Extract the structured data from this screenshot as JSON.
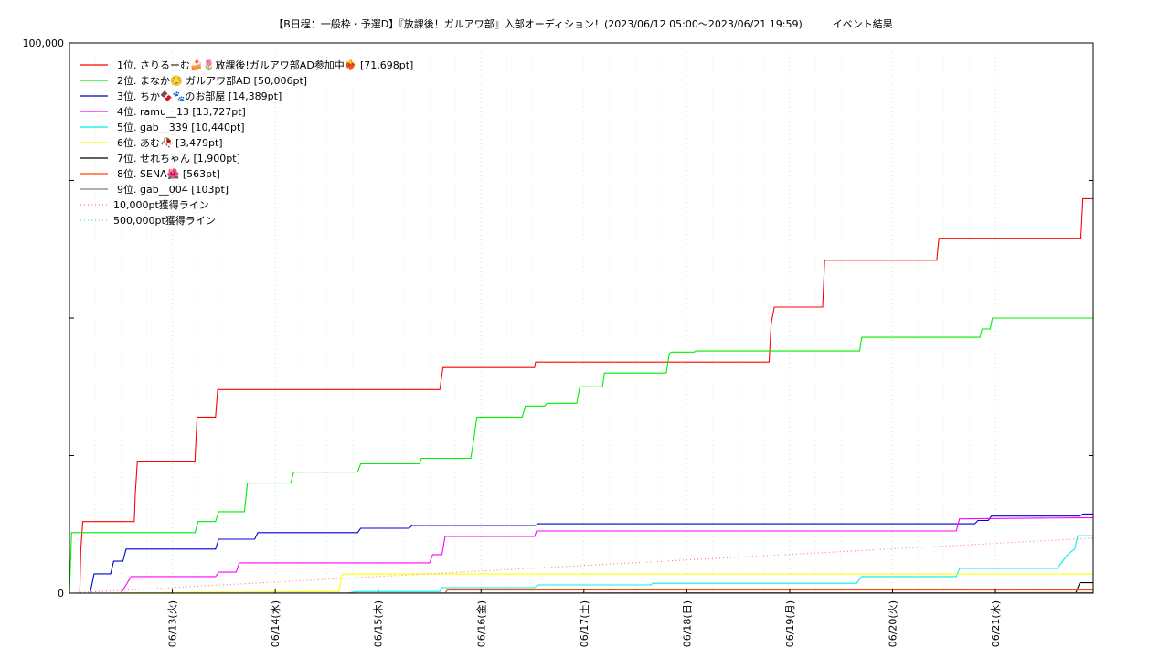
{
  "chart_data": {
    "type": "line",
    "title": "【B日程：一般枠・予選D】『放課後！ガルアワ部』入部オーディション！(2023/06/12 05:00〜2023/06/21 19:59)　　　イベント結果",
    "y_top_label": "100,000",
    "y_bottom_label": "0",
    "ylim": [
      0,
      100000
    ],
    "xlim": [
      "2023-06-12 05:00",
      "2023-06-21 19:59"
    ],
    "x_ticks": [
      "06/13(火)",
      "06/14(水)",
      "06/15(木)",
      "06/16(金)",
      "06/17(土)",
      "06/18(日)",
      "06/19(月)",
      "06/20(火)",
      "06/21(水)"
    ],
    "x_tick_times": [
      1,
      2,
      3,
      4,
      5,
      6,
      7,
      8,
      9
    ],
    "grid": true,
    "legend_position": "top-left",
    "series": [
      {
        "name": "1位. さりるーむ🍰🌷放課後!ガルアワ部AD参加中❤️‍🔥 [71,698pt]",
        "color": "#ff0000",
        "dash": "",
        "points": [
          [
            0.1,
            0
          ],
          [
            0.11,
            8000
          ],
          [
            0.13,
            13000
          ],
          [
            0.63,
            13000
          ],
          [
            0.64,
            18000
          ],
          [
            0.66,
            24000
          ],
          [
            1.22,
            24000
          ],
          [
            1.24,
            32000
          ],
          [
            1.42,
            32000
          ],
          [
            1.44,
            37000
          ],
          [
            3.6,
            37000
          ],
          [
            3.63,
            41000
          ],
          [
            4.52,
            41000
          ],
          [
            4.53,
            42000
          ],
          [
            6.8,
            42000
          ],
          [
            6.82,
            49000
          ],
          [
            6.85,
            52000
          ],
          [
            7.32,
            52000
          ],
          [
            7.34,
            60500
          ],
          [
            8.43,
            60500
          ],
          [
            8.45,
            64500
          ],
          [
            9.83,
            64500
          ],
          [
            9.85,
            71698
          ],
          [
            9.95,
            71698
          ]
        ]
      },
      {
        "name": "2位. まなか☺️ ガルアワ部AD [50,006pt]",
        "color": "#00ee00",
        "dash": "",
        "points": [
          [
            0,
            0
          ],
          [
            0.02,
            11000
          ],
          [
            1.22,
            11000
          ],
          [
            1.25,
            13000
          ],
          [
            1.42,
            13000
          ],
          [
            1.45,
            14800
          ],
          [
            1.7,
            14800
          ],
          [
            1.73,
            20000
          ],
          [
            2.15,
            20000
          ],
          [
            2.18,
            22000
          ],
          [
            2.8,
            22000
          ],
          [
            2.83,
            23500
          ],
          [
            3.4,
            23500
          ],
          [
            3.42,
            24500
          ],
          [
            3.9,
            24500
          ],
          [
            3.93,
            28000
          ],
          [
            3.96,
            32000
          ],
          [
            4.4,
            32000
          ],
          [
            4.43,
            34000
          ],
          [
            4.62,
            34000
          ],
          [
            4.64,
            34500
          ],
          [
            4.93,
            34500
          ],
          [
            4.96,
            37500
          ],
          [
            5.18,
            37500
          ],
          [
            5.2,
            40000
          ],
          [
            5.8,
            40000
          ],
          [
            5.83,
            43500
          ],
          [
            5.85,
            43800
          ],
          [
            6.07,
            43800
          ],
          [
            6.09,
            44000
          ],
          [
            7.68,
            44000
          ],
          [
            7.7,
            46500
          ],
          [
            8.85,
            46500
          ],
          [
            8.87,
            48000
          ],
          [
            8.95,
            48000
          ],
          [
            8.97,
            50006
          ],
          [
            9.95,
            50006
          ]
        ]
      },
      {
        "name": "3位. ちか🍫🐾のお部屋 [14,389pt]",
        "color": "#0000cc",
        "dash": "",
        "points": [
          [
            0.2,
            0
          ],
          [
            0.24,
            3500
          ],
          [
            0.4,
            3500
          ],
          [
            0.43,
            5800
          ],
          [
            0.52,
            5800
          ],
          [
            0.55,
            8000
          ],
          [
            1.42,
            8000
          ],
          [
            1.45,
            9800
          ],
          [
            1.8,
            9800
          ],
          [
            1.83,
            11000
          ],
          [
            2.8,
            11000
          ],
          [
            2.83,
            11800
          ],
          [
            3.3,
            11800
          ],
          [
            3.33,
            12300
          ],
          [
            4.53,
            12300
          ],
          [
            4.55,
            12600
          ],
          [
            8.8,
            12600
          ],
          [
            8.83,
            13200
          ],
          [
            8.93,
            13200
          ],
          [
            8.96,
            14000
          ],
          [
            9.82,
            14000
          ],
          [
            9.85,
            14389
          ],
          [
            9.95,
            14389
          ]
        ]
      },
      {
        "name": "4位. ramu__13 [13,727pt]",
        "color": "#ff00ff",
        "dash": "",
        "points": [
          [
            0.5,
            0
          ],
          [
            0.6,
            3000
          ],
          [
            1.42,
            3000
          ],
          [
            1.45,
            3800
          ],
          [
            1.62,
            3800
          ],
          [
            1.65,
            5500
          ],
          [
            3.5,
            5500
          ],
          [
            3.53,
            7000
          ],
          [
            3.62,
            7000
          ],
          [
            3.65,
            10300
          ],
          [
            4.52,
            10300
          ],
          [
            4.54,
            11300
          ],
          [
            8.62,
            11300
          ],
          [
            8.65,
            13500
          ],
          [
            9.95,
            13727
          ]
        ]
      },
      {
        "name": "5位. gab__339 [10,440pt]",
        "color": "#00eeee",
        "dash": "",
        "points": [
          [
            2.7,
            0
          ],
          [
            2.8,
            300
          ],
          [
            3.6,
            300
          ],
          [
            3.62,
            1000
          ],
          [
            4.52,
            1000
          ],
          [
            4.55,
            1500
          ],
          [
            5.65,
            1500
          ],
          [
            5.67,
            1800
          ],
          [
            7.65,
            1800
          ],
          [
            7.7,
            3000
          ],
          [
            8.62,
            3000
          ],
          [
            8.65,
            4500
          ],
          [
            9.6,
            4500
          ],
          [
            9.7,
            7000
          ],
          [
            9.77,
            8000
          ],
          [
            9.8,
            10440
          ],
          [
            9.95,
            10440
          ]
        ]
      },
      {
        "name": "6位. あむ🥀 [3,479pt]",
        "color": "#ffff00",
        "dash": "",
        "points": [
          [
            0.25,
            0
          ],
          [
            2.62,
            300
          ],
          [
            2.65,
            3479
          ],
          [
            9.95,
            3479
          ]
        ]
      },
      {
        "name": "7位. せれちゃん [1,900pt]",
        "color": "#000000",
        "dash": "",
        "points": [
          [
            0.3,
            0
          ],
          [
            9.78,
            0
          ],
          [
            9.82,
            1900
          ],
          [
            9.95,
            1900
          ]
        ]
      },
      {
        "name": "8位. SENA🌺 [563pt]",
        "color": "#ff4500",
        "dash": "",
        "points": [
          [
            1.4,
            0
          ],
          [
            3.65,
            0
          ],
          [
            3.67,
            563
          ],
          [
            9.95,
            563
          ]
        ]
      },
      {
        "name": "9位. gab__004 [103pt]",
        "color": "#808080",
        "dash": "",
        "points": [
          [
            0,
            0
          ],
          [
            4.5,
            50
          ],
          [
            9.95,
            103
          ]
        ]
      },
      {
        "name": "10,000pt獲得ライン",
        "color": "#ff7777",
        "dash": "1,3",
        "points": [
          [
            0,
            0
          ],
          [
            9.95,
            10000
          ]
        ]
      },
      {
        "name": "500,000pt獲得ライン",
        "color": "#77dd77",
        "dash": "1,3",
        "points": []
      }
    ]
  }
}
